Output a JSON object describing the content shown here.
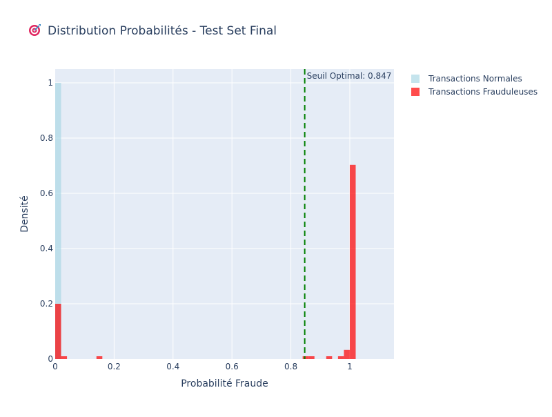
{
  "chart_data": {
    "type": "bar",
    "title": "Distribution Probabilités - Test Set Final",
    "xlabel": "Probabilité Fraude",
    "ylabel": "Densité",
    "xlim": [
      0,
      1.15
    ],
    "ylim": [
      0,
      1.05
    ],
    "x_ticks": [
      0,
      0.2,
      0.4,
      0.6,
      0.8,
      1
    ],
    "x_tick_labels": [
      "0",
      "0.2",
      "0.4",
      "0.6",
      "0.8",
      "1"
    ],
    "y_ticks": [
      0,
      0.2,
      0.4,
      0.6,
      0.8,
      1
    ],
    "y_tick_labels": [
      "0",
      "0.2",
      "0.4",
      "0.6",
      "0.8",
      "1"
    ],
    "bin_width": 0.02,
    "barmode": "overlay",
    "grid": true,
    "legend_position": "top-right",
    "series": [
      {
        "name": "Transactions Normales",
        "color": "#add8e6",
        "opacity": 0.7,
        "bins": [
          {
            "x0": 0.0,
            "x1": 0.02,
            "value": 1.0
          }
        ]
      },
      {
        "name": "Transactions Frauduleuses",
        "color": "#ff0000",
        "opacity": 0.7,
        "bins": [
          {
            "x0": 0.0,
            "x1": 0.02,
            "value": 0.2
          },
          {
            "x0": 0.02,
            "x1": 0.04,
            "value": 0.01
          },
          {
            "x0": 0.14,
            "x1": 0.16,
            "value": 0.01
          },
          {
            "x0": 0.84,
            "x1": 0.86,
            "value": 0.01
          },
          {
            "x0": 0.86,
            "x1": 0.88,
            "value": 0.01
          },
          {
            "x0": 0.92,
            "x1": 0.94,
            "value": 0.01
          },
          {
            "x0": 0.96,
            "x1": 0.98,
            "value": 0.01
          },
          {
            "x0": 0.98,
            "x1": 1.0,
            "value": 0.033
          },
          {
            "x0": 1.0,
            "x1": 1.02,
            "value": 0.703
          }
        ]
      }
    ],
    "threshold": {
      "value": 0.847,
      "label": "Seuil Optimal: 0.847",
      "color": "#008000",
      "dash": "dashed"
    }
  },
  "title_icon": "target-icon",
  "colors": {
    "plot_background": "#e5ecf6",
    "grid": "#ffffff",
    "text": "#2a3f5f"
  }
}
